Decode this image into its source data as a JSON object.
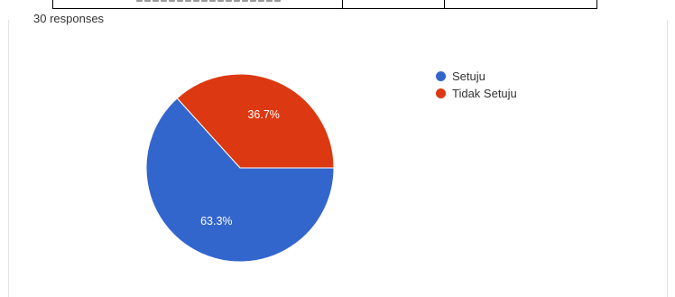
{
  "response_count_text": "30 responses",
  "chart_data": {
    "type": "pie",
    "title": "",
    "legend_position": "right",
    "slices": [
      {
        "name": "Setuju",
        "value": 63.3,
        "label": "63.3%",
        "color": "#3366cc"
      },
      {
        "name": "Tidak Setuju",
        "value": 36.7,
        "label": "36.7%",
        "color": "#dc3912"
      }
    ]
  }
}
